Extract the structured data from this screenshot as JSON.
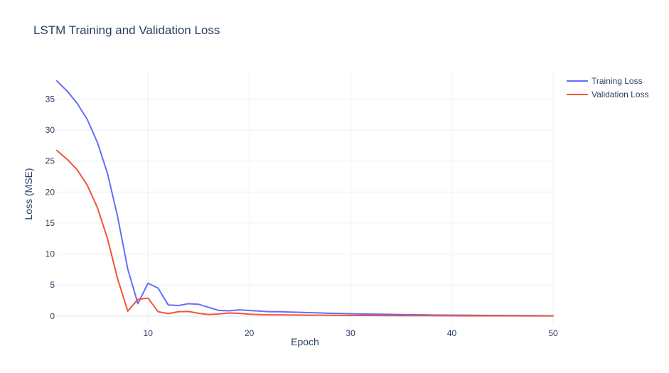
{
  "chart_data": {
    "type": "line",
    "title": "LSTM Training and Validation Loss",
    "xlabel": "Epoch",
    "ylabel": "Loss (MSE)",
    "xlim": [
      1,
      50
    ],
    "ylim": [
      -1.5,
      39.5
    ],
    "xticks": [
      10,
      20,
      30,
      40,
      50
    ],
    "yticks": [
      0,
      5,
      10,
      15,
      20,
      25,
      30,
      35
    ],
    "grid": true,
    "legend_position": "top-right",
    "x": [
      1,
      2,
      3,
      4,
      5,
      6,
      7,
      8,
      9,
      10,
      11,
      12,
      13,
      14,
      15,
      16,
      17,
      18,
      19,
      20,
      21,
      22,
      23,
      24,
      25,
      26,
      27,
      28,
      29,
      30,
      31,
      32,
      33,
      34,
      35,
      36,
      37,
      38,
      39,
      40,
      41,
      42,
      43,
      44,
      45,
      46,
      47,
      48,
      49,
      50
    ],
    "series": [
      {
        "name": "Training Loss",
        "color": "#636efa",
        "values": [
          37.9,
          36.3,
          34.3,
          31.7,
          28.0,
          23.0,
          16.0,
          7.6,
          2.0,
          5.3,
          4.5,
          1.8,
          1.7,
          2.0,
          1.9,
          1.4,
          0.9,
          0.85,
          1.0,
          0.9,
          0.8,
          0.7,
          0.7,
          0.65,
          0.6,
          0.55,
          0.5,
          0.45,
          0.42,
          0.38,
          0.35,
          0.32,
          0.3,
          0.27,
          0.25,
          0.22,
          0.2,
          0.18,
          0.16,
          0.15,
          0.14,
          0.13,
          0.12,
          0.11,
          0.1,
          0.09,
          0.08,
          0.07,
          0.06,
          0.05
        ]
      },
      {
        "name": "Validation Loss",
        "color": "#ef553b",
        "values": [
          26.7,
          25.3,
          23.6,
          21.1,
          17.5,
          12.5,
          6.0,
          0.8,
          2.7,
          2.9,
          0.7,
          0.4,
          0.7,
          0.75,
          0.45,
          0.25,
          0.35,
          0.5,
          0.45,
          0.3,
          0.25,
          0.2,
          0.2,
          0.18,
          0.17,
          0.15,
          0.14,
          0.13,
          0.12,
          0.11,
          0.1,
          0.1,
          0.09,
          0.09,
          0.08,
          0.08,
          0.07,
          0.07,
          0.06,
          0.06,
          0.05,
          0.05,
          0.05,
          0.04,
          0.04,
          0.04,
          0.03,
          0.03,
          0.03,
          0.03
        ]
      }
    ]
  }
}
